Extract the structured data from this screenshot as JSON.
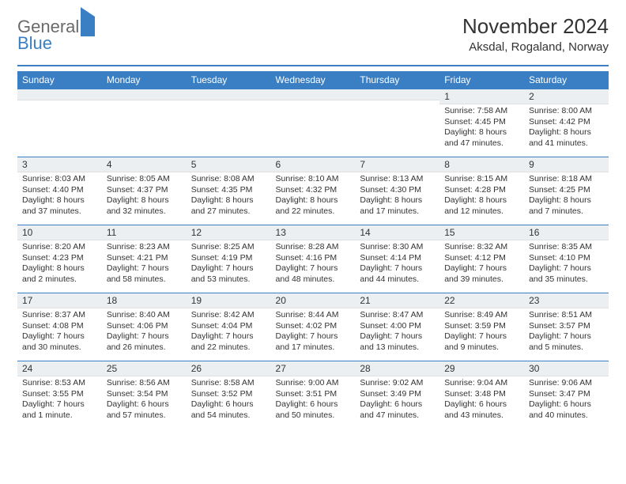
{
  "logo": {
    "line1": "General",
    "line2": "Blue"
  },
  "title": "November 2024",
  "location": "Aksdal, Rogaland, Norway",
  "colors": {
    "accent": "#3a7fc4",
    "dayband": "#eceff1",
    "text": "#333333",
    "bg": "#ffffff"
  },
  "typography": {
    "title_fontsize": 26,
    "location_fontsize": 15,
    "header_fontsize": 12,
    "body_fontsize": 10.5
  },
  "weekdays": [
    "Sunday",
    "Monday",
    "Tuesday",
    "Wednesday",
    "Thursday",
    "Friday",
    "Saturday"
  ],
  "weeks": [
    [
      null,
      null,
      null,
      null,
      null,
      {
        "n": "1",
        "sr": "Sunrise: 7:58 AM",
        "ss": "Sunset: 4:45 PM",
        "dl": "Daylight: 8 hours and 47 minutes."
      },
      {
        "n": "2",
        "sr": "Sunrise: 8:00 AM",
        "ss": "Sunset: 4:42 PM",
        "dl": "Daylight: 8 hours and 41 minutes."
      }
    ],
    [
      {
        "n": "3",
        "sr": "Sunrise: 8:03 AM",
        "ss": "Sunset: 4:40 PM",
        "dl": "Daylight: 8 hours and 37 minutes."
      },
      {
        "n": "4",
        "sr": "Sunrise: 8:05 AM",
        "ss": "Sunset: 4:37 PM",
        "dl": "Daylight: 8 hours and 32 minutes."
      },
      {
        "n": "5",
        "sr": "Sunrise: 8:08 AM",
        "ss": "Sunset: 4:35 PM",
        "dl": "Daylight: 8 hours and 27 minutes."
      },
      {
        "n": "6",
        "sr": "Sunrise: 8:10 AM",
        "ss": "Sunset: 4:32 PM",
        "dl": "Daylight: 8 hours and 22 minutes."
      },
      {
        "n": "7",
        "sr": "Sunrise: 8:13 AM",
        "ss": "Sunset: 4:30 PM",
        "dl": "Daylight: 8 hours and 17 minutes."
      },
      {
        "n": "8",
        "sr": "Sunrise: 8:15 AM",
        "ss": "Sunset: 4:28 PM",
        "dl": "Daylight: 8 hours and 12 minutes."
      },
      {
        "n": "9",
        "sr": "Sunrise: 8:18 AM",
        "ss": "Sunset: 4:25 PM",
        "dl": "Daylight: 8 hours and 7 minutes."
      }
    ],
    [
      {
        "n": "10",
        "sr": "Sunrise: 8:20 AM",
        "ss": "Sunset: 4:23 PM",
        "dl": "Daylight: 8 hours and 2 minutes."
      },
      {
        "n": "11",
        "sr": "Sunrise: 8:23 AM",
        "ss": "Sunset: 4:21 PM",
        "dl": "Daylight: 7 hours and 58 minutes."
      },
      {
        "n": "12",
        "sr": "Sunrise: 8:25 AM",
        "ss": "Sunset: 4:19 PM",
        "dl": "Daylight: 7 hours and 53 minutes."
      },
      {
        "n": "13",
        "sr": "Sunrise: 8:28 AM",
        "ss": "Sunset: 4:16 PM",
        "dl": "Daylight: 7 hours and 48 minutes."
      },
      {
        "n": "14",
        "sr": "Sunrise: 8:30 AM",
        "ss": "Sunset: 4:14 PM",
        "dl": "Daylight: 7 hours and 44 minutes."
      },
      {
        "n": "15",
        "sr": "Sunrise: 8:32 AM",
        "ss": "Sunset: 4:12 PM",
        "dl": "Daylight: 7 hours and 39 minutes."
      },
      {
        "n": "16",
        "sr": "Sunrise: 8:35 AM",
        "ss": "Sunset: 4:10 PM",
        "dl": "Daylight: 7 hours and 35 minutes."
      }
    ],
    [
      {
        "n": "17",
        "sr": "Sunrise: 8:37 AM",
        "ss": "Sunset: 4:08 PM",
        "dl": "Daylight: 7 hours and 30 minutes."
      },
      {
        "n": "18",
        "sr": "Sunrise: 8:40 AM",
        "ss": "Sunset: 4:06 PM",
        "dl": "Daylight: 7 hours and 26 minutes."
      },
      {
        "n": "19",
        "sr": "Sunrise: 8:42 AM",
        "ss": "Sunset: 4:04 PM",
        "dl": "Daylight: 7 hours and 22 minutes."
      },
      {
        "n": "20",
        "sr": "Sunrise: 8:44 AM",
        "ss": "Sunset: 4:02 PM",
        "dl": "Daylight: 7 hours and 17 minutes."
      },
      {
        "n": "21",
        "sr": "Sunrise: 8:47 AM",
        "ss": "Sunset: 4:00 PM",
        "dl": "Daylight: 7 hours and 13 minutes."
      },
      {
        "n": "22",
        "sr": "Sunrise: 8:49 AM",
        "ss": "Sunset: 3:59 PM",
        "dl": "Daylight: 7 hours and 9 minutes."
      },
      {
        "n": "23",
        "sr": "Sunrise: 8:51 AM",
        "ss": "Sunset: 3:57 PM",
        "dl": "Daylight: 7 hours and 5 minutes."
      }
    ],
    [
      {
        "n": "24",
        "sr": "Sunrise: 8:53 AM",
        "ss": "Sunset: 3:55 PM",
        "dl": "Daylight: 7 hours and 1 minute."
      },
      {
        "n": "25",
        "sr": "Sunrise: 8:56 AM",
        "ss": "Sunset: 3:54 PM",
        "dl": "Daylight: 6 hours and 57 minutes."
      },
      {
        "n": "26",
        "sr": "Sunrise: 8:58 AM",
        "ss": "Sunset: 3:52 PM",
        "dl": "Daylight: 6 hours and 54 minutes."
      },
      {
        "n": "27",
        "sr": "Sunrise: 9:00 AM",
        "ss": "Sunset: 3:51 PM",
        "dl": "Daylight: 6 hours and 50 minutes."
      },
      {
        "n": "28",
        "sr": "Sunrise: 9:02 AM",
        "ss": "Sunset: 3:49 PM",
        "dl": "Daylight: 6 hours and 47 minutes."
      },
      {
        "n": "29",
        "sr": "Sunrise: 9:04 AM",
        "ss": "Sunset: 3:48 PM",
        "dl": "Daylight: 6 hours and 43 minutes."
      },
      {
        "n": "30",
        "sr": "Sunrise: 9:06 AM",
        "ss": "Sunset: 3:47 PM",
        "dl": "Daylight: 6 hours and 40 minutes."
      }
    ]
  ]
}
